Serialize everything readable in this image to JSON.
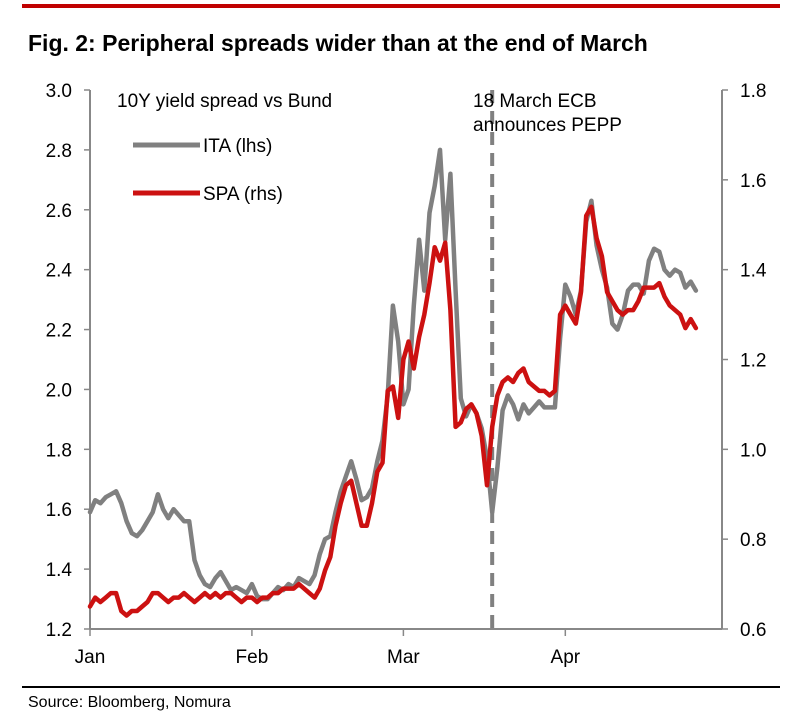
{
  "title": "Fig. 2: Peripheral spreads wider than at the end of March",
  "source": "Source: Bloomberg, Nomura",
  "chart_data": {
    "type": "line",
    "subtitle": "10Y yield spread vs Bund",
    "annotation": "18 March ECB\nannounces PEPP",
    "event_day": 77,
    "x_tick_labels": [
      {
        "label": "Jan",
        "day": 0
      },
      {
        "label": "Feb",
        "day": 31
      },
      {
        "label": "Mar",
        "day": 60
      },
      {
        "label": "Apr",
        "day": 91
      }
    ],
    "xlim": [
      0,
      121
    ],
    "ylim_left": [
      1.2,
      3.0
    ],
    "ylim_right": [
      0.6,
      1.8
    ],
    "yticks_left": [
      "1.2",
      "1.4",
      "1.6",
      "1.8",
      "2.0",
      "2.2",
      "2.4",
      "2.6",
      "2.8",
      "3.0"
    ],
    "yticks_right": [
      "0.6",
      "0.8",
      "1.0",
      "1.2",
      "1.4",
      "1.6",
      "1.8"
    ],
    "legend_placement": "top-left",
    "grid": false,
    "series": [
      {
        "name": "ITA (lhs)",
        "axis": "left",
        "color": "#808080",
        "points": [
          [
            0,
            1.59
          ],
          [
            1,
            1.63
          ],
          [
            2,
            1.62
          ],
          [
            3,
            1.64
          ],
          [
            4,
            1.65
          ],
          [
            5,
            1.66
          ],
          [
            6,
            1.62
          ],
          [
            7,
            1.56
          ],
          [
            8,
            1.52
          ],
          [
            9,
            1.51
          ],
          [
            10,
            1.53
          ],
          [
            11,
            1.56
          ],
          [
            12,
            1.59
          ],
          [
            13,
            1.65
          ],
          [
            14,
            1.6
          ],
          [
            15,
            1.57
          ],
          [
            16,
            1.6
          ],
          [
            17,
            1.58
          ],
          [
            18,
            1.56
          ],
          [
            19,
            1.56
          ],
          [
            20,
            1.43
          ],
          [
            21,
            1.38
          ],
          [
            22,
            1.35
          ],
          [
            23,
            1.34
          ],
          [
            24,
            1.37
          ],
          [
            25,
            1.39
          ],
          [
            26,
            1.36
          ],
          [
            27,
            1.33
          ],
          [
            28,
            1.34
          ],
          [
            29,
            1.33
          ],
          [
            30,
            1.32
          ],
          [
            31,
            1.35
          ],
          [
            32,
            1.31
          ],
          [
            33,
            1.3
          ],
          [
            34,
            1.3
          ],
          [
            35,
            1.32
          ],
          [
            36,
            1.34
          ],
          [
            37,
            1.33
          ],
          [
            38,
            1.35
          ],
          [
            39,
            1.34
          ],
          [
            40,
            1.37
          ],
          [
            41,
            1.36
          ],
          [
            42,
            1.35
          ],
          [
            43,
            1.38
          ],
          [
            44,
            1.45
          ],
          [
            45,
            1.5
          ],
          [
            46,
            1.51
          ],
          [
            47,
            1.59
          ],
          [
            48,
            1.66
          ],
          [
            49,
            1.71
          ],
          [
            50,
            1.76
          ],
          [
            51,
            1.7
          ],
          [
            52,
            1.63
          ],
          [
            53,
            1.64
          ],
          [
            54,
            1.67
          ],
          [
            55,
            1.76
          ],
          [
            56,
            1.83
          ],
          [
            57,
            1.98
          ],
          [
            58,
            2.28
          ],
          [
            59,
            2.16
          ],
          [
            60,
            1.95
          ],
          [
            61,
            2.0
          ],
          [
            62,
            2.28
          ],
          [
            63,
            2.5
          ],
          [
            64,
            2.33
          ],
          [
            65,
            2.59
          ],
          [
            66,
            2.68
          ],
          [
            67,
            2.8
          ],
          [
            68,
            2.5
          ],
          [
            69,
            2.72
          ],
          [
            70,
            2.33
          ],
          [
            71,
            1.97
          ],
          [
            72,
            1.91
          ],
          [
            73,
            1.95
          ],
          [
            74,
            1.92
          ],
          [
            75,
            1.87
          ],
          [
            76,
            1.77
          ],
          [
            77,
            1.59
          ],
          [
            78,
            1.74
          ],
          [
            79,
            1.93
          ],
          [
            80,
            1.98
          ],
          [
            81,
            1.95
          ],
          [
            82,
            1.9
          ],
          [
            83,
            1.95
          ],
          [
            84,
            1.92
          ],
          [
            85,
            1.94
          ],
          [
            86,
            1.96
          ],
          [
            87,
            1.94
          ],
          [
            88,
            1.94
          ],
          [
            89,
            1.94
          ],
          [
            90,
            2.17
          ],
          [
            91,
            2.35
          ],
          [
            92,
            2.31
          ],
          [
            93,
            2.25
          ],
          [
            94,
            2.33
          ],
          [
            95,
            2.56
          ],
          [
            96,
            2.63
          ],
          [
            97,
            2.48
          ],
          [
            98,
            2.4
          ],
          [
            99,
            2.34
          ],
          [
            100,
            2.22
          ],
          [
            101,
            2.2
          ],
          [
            102,
            2.25
          ],
          [
            103,
            2.33
          ],
          [
            104,
            2.35
          ],
          [
            105,
            2.35
          ],
          [
            106,
            2.32
          ],
          [
            107,
            2.43
          ],
          [
            108,
            2.47
          ],
          [
            109,
            2.46
          ],
          [
            110,
            2.4
          ],
          [
            111,
            2.38
          ],
          [
            112,
            2.4
          ],
          [
            113,
            2.39
          ],
          [
            114,
            2.34
          ],
          [
            115,
            2.36
          ],
          [
            116,
            2.33
          ]
        ]
      },
      {
        "name": "SPA (rhs)",
        "axis": "right",
        "color": "#cc1111",
        "points": [
          [
            0,
            0.65
          ],
          [
            1,
            0.67
          ],
          [
            2,
            0.66
          ],
          [
            3,
            0.67
          ],
          [
            4,
            0.68
          ],
          [
            5,
            0.68
          ],
          [
            6,
            0.64
          ],
          [
            7,
            0.63
          ],
          [
            8,
            0.64
          ],
          [
            9,
            0.64
          ],
          [
            10,
            0.65
          ],
          [
            11,
            0.66
          ],
          [
            12,
            0.68
          ],
          [
            13,
            0.68
          ],
          [
            14,
            0.67
          ],
          [
            15,
            0.66
          ],
          [
            16,
            0.67
          ],
          [
            17,
            0.67
          ],
          [
            18,
            0.68
          ],
          [
            19,
            0.67
          ],
          [
            20,
            0.66
          ],
          [
            21,
            0.67
          ],
          [
            22,
            0.68
          ],
          [
            23,
            0.67
          ],
          [
            24,
            0.68
          ],
          [
            25,
            0.67
          ],
          [
            26,
            0.68
          ],
          [
            27,
            0.68
          ],
          [
            28,
            0.67
          ],
          [
            29,
            0.66
          ],
          [
            30,
            0.67
          ],
          [
            31,
            0.67
          ],
          [
            32,
            0.66
          ],
          [
            33,
            0.67
          ],
          [
            34,
            0.67
          ],
          [
            35,
            0.68
          ],
          [
            36,
            0.68
          ],
          [
            37,
            0.69
          ],
          [
            38,
            0.69
          ],
          [
            39,
            0.69
          ],
          [
            40,
            0.7
          ],
          [
            41,
            0.69
          ],
          [
            42,
            0.68
          ],
          [
            43,
            0.67
          ],
          [
            44,
            0.69
          ],
          [
            45,
            0.73
          ],
          [
            46,
            0.76
          ],
          [
            47,
            0.83
          ],
          [
            48,
            0.88
          ],
          [
            49,
            0.92
          ],
          [
            50,
            0.93
          ],
          [
            51,
            0.88
          ],
          [
            52,
            0.83
          ],
          [
            53,
            0.83
          ],
          [
            54,
            0.88
          ],
          [
            55,
            0.95
          ],
          [
            56,
            0.97
          ],
          [
            57,
            1.13
          ],
          [
            58,
            1.14
          ],
          [
            59,
            1.07
          ],
          [
            60,
            1.2
          ],
          [
            61,
            1.24
          ],
          [
            62,
            1.18
          ],
          [
            63,
            1.25
          ],
          [
            64,
            1.3
          ],
          [
            65,
            1.37
          ],
          [
            66,
            1.45
          ],
          [
            67,
            1.42
          ],
          [
            68,
            1.46
          ],
          [
            69,
            1.31
          ],
          [
            70,
            1.05
          ],
          [
            71,
            1.06
          ],
          [
            72,
            1.09
          ],
          [
            73,
            1.1
          ],
          [
            74,
            1.08
          ],
          [
            75,
            1.03
          ],
          [
            76,
            0.92
          ],
          [
            77,
            1.05
          ],
          [
            78,
            1.12
          ],
          [
            79,
            1.15
          ],
          [
            80,
            1.16
          ],
          [
            81,
            1.15
          ],
          [
            82,
            1.17
          ],
          [
            83,
            1.18
          ],
          [
            84,
            1.15
          ],
          [
            85,
            1.14
          ],
          [
            86,
            1.13
          ],
          [
            87,
            1.13
          ],
          [
            88,
            1.12
          ],
          [
            89,
            1.13
          ],
          [
            90,
            1.3
          ],
          [
            91,
            1.32
          ],
          [
            92,
            1.3
          ],
          [
            93,
            1.28
          ],
          [
            94,
            1.35
          ],
          [
            95,
            1.52
          ],
          [
            96,
            1.54
          ],
          [
            97,
            1.47
          ],
          [
            98,
            1.43
          ],
          [
            99,
            1.35
          ],
          [
            100,
            1.33
          ],
          [
            101,
            1.31
          ],
          [
            102,
            1.3
          ],
          [
            103,
            1.31
          ],
          [
            104,
            1.31
          ],
          [
            105,
            1.33
          ],
          [
            106,
            1.36
          ],
          [
            107,
            1.36
          ],
          [
            108,
            1.36
          ],
          [
            109,
            1.37
          ],
          [
            110,
            1.34
          ],
          [
            111,
            1.32
          ],
          [
            112,
            1.31
          ],
          [
            113,
            1.3
          ],
          [
            114,
            1.27
          ],
          [
            115,
            1.29
          ],
          [
            116,
            1.27
          ]
        ]
      }
    ]
  }
}
